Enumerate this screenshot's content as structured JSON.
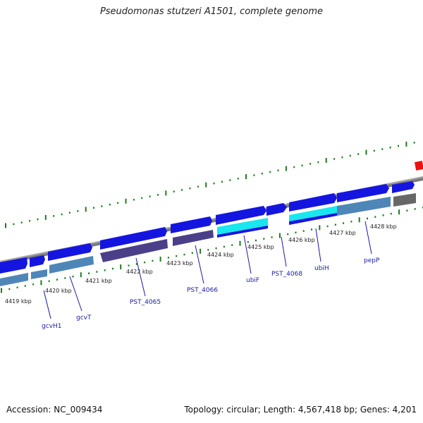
{
  "title": "Pseudomonas stutzeri A1501, complete genome",
  "accession_text": "Accession: NC_009434",
  "topology_text": "Topology: circular; Length: 4,567,418 bp; Genes: 4,201",
  "colors": {
    "backbone": "#7b7b7b",
    "forward_gene": "#1515e0",
    "reverse_cog_blue": "#4f86b8",
    "reverse_cog_purple": "#4b3f8a",
    "reverse_cog_cyan": "#19e6ee",
    "reverse_cog_gray": "#676767",
    "tick": "#1e7a1e",
    "marker": "#ee1111",
    "label": "#1a1aa8"
  },
  "kbp_labels": [
    "4419 kbp",
    "4420 kbp",
    "4421 kbp",
    "4422 kbp",
    "4423 kbp",
    "4424 kbp",
    "4425 kbp",
    "4426 kbp",
    "4427 kbp",
    "4428 kbp"
  ],
  "gene_labels": [
    "gcvH1",
    "gcvT",
    "PST_4065",
    "PST_4066",
    "ubiF",
    "PST_4068",
    "ubiH",
    "pepP"
  ]
}
